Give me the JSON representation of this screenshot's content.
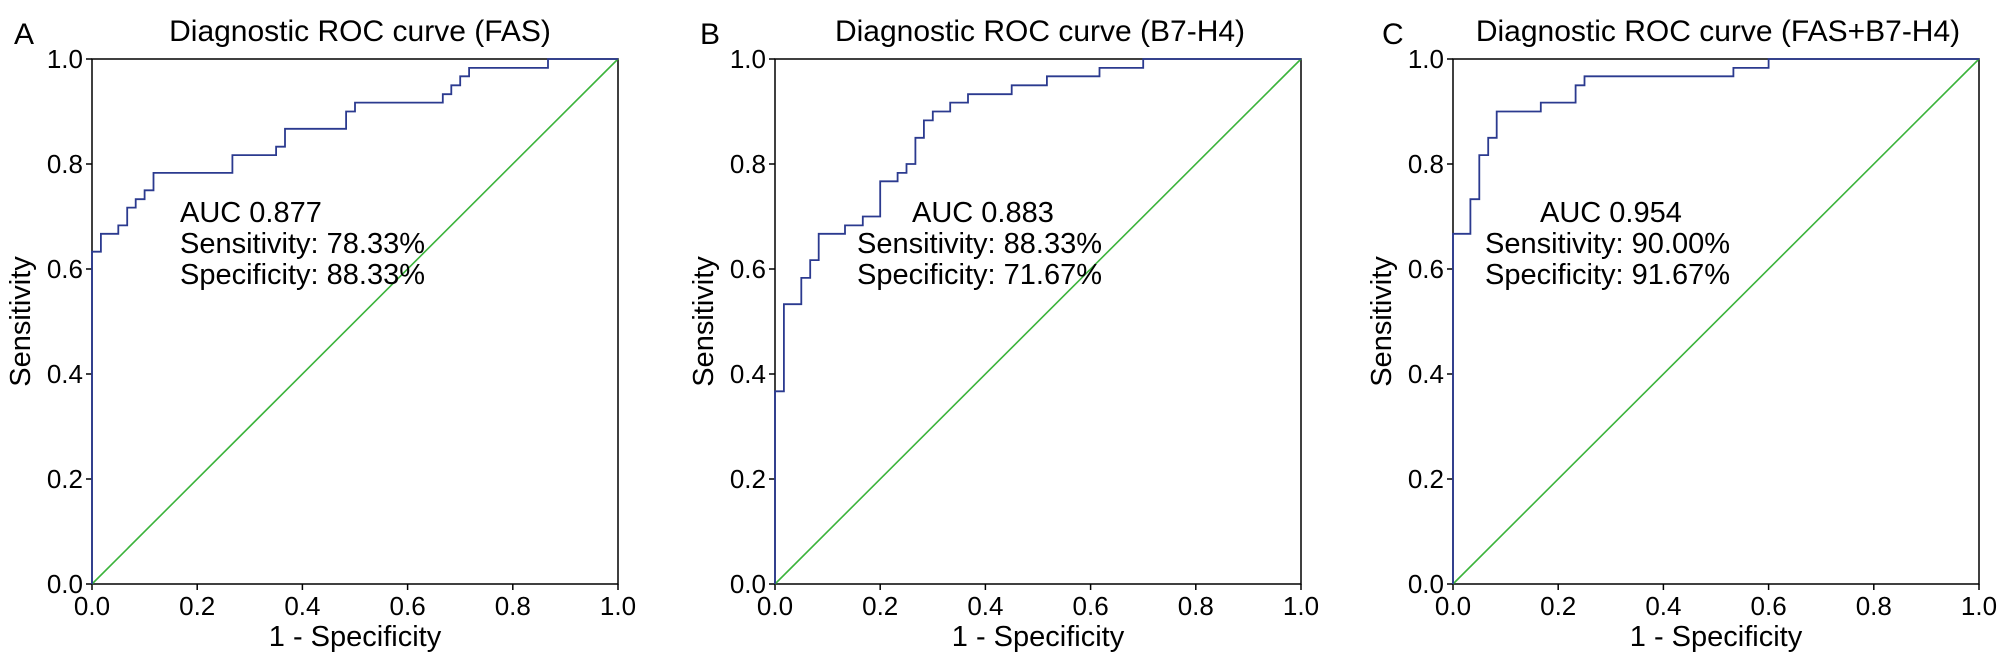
{
  "chart_data": [
    {
      "panel": "A",
      "type": "line",
      "title": "Diagnostic ROC curve (FAS)",
      "xlabel": "1 - Specificity",
      "ylabel": "Sensitivity",
      "xlim": [
        0,
        1
      ],
      "ylim": [
        0,
        1
      ],
      "xticks": [
        "0.0",
        "0.2",
        "0.4",
        "0.6",
        "0.8",
        "1.0"
      ],
      "yticks": [
        "0.0",
        "0.2",
        "0.4",
        "0.6",
        "0.8",
        "1.0"
      ],
      "annotations": [
        "AUC 0.877",
        "Sensitivity: 78.33%",
        "Specificity: 88.33%"
      ],
      "series": [
        {
          "name": "ROC curve",
          "color": "#2b3a8f",
          "x": [
            0,
            0,
            0.017,
            0.017,
            0.05,
            0.05,
            0.067,
            0.067,
            0.083,
            0.083,
            0.1,
            0.1,
            0.117,
            0.117,
            0.267,
            0.267,
            0.35,
            0.35,
            0.367,
            0.367,
            0.483,
            0.483,
            0.5,
            0.5,
            0.667,
            0.667,
            0.683,
            0.683,
            0.7,
            0.7,
            0.717,
            0.717,
            0.733,
            0.733,
            0.75,
            0.75,
            0.867,
            0.867,
            1.0
          ],
          "y": [
            0,
            0.633,
            0.633,
            0.667,
            0.667,
            0.683,
            0.683,
            0.717,
            0.717,
            0.733,
            0.733,
            0.75,
            0.75,
            0.783,
            0.783,
            0.817,
            0.817,
            0.833,
            0.833,
            0.867,
            0.867,
            0.9,
            0.9,
            0.917,
            0.917,
            0.933,
            0.933,
            0.95,
            0.95,
            0.967,
            0.967,
            0.983,
            0.983,
            0.983,
            0.983,
            0.983,
            0.983,
            1.0,
            1.0
          ]
        },
        {
          "name": "Reference line",
          "color": "#3bb33b",
          "x": [
            0,
            1
          ],
          "y": [
            0,
            1
          ]
        }
      ]
    },
    {
      "panel": "B",
      "type": "line",
      "title": "Diagnostic ROC curve (B7-H4)",
      "xlabel": "1 - Specificity",
      "ylabel": "Sensitivity",
      "xlim": [
        0,
        1
      ],
      "ylim": [
        0,
        1
      ],
      "xticks": [
        "0.0",
        "0.2",
        "0.4",
        "0.6",
        "0.8",
        "1.0"
      ],
      "yticks": [
        "0.0",
        "0.2",
        "0.4",
        "0.6",
        "0.8",
        "1.0"
      ],
      "annotations": [
        "AUC 0.883",
        "Sensitivity: 88.33%",
        "Specificity: 71.67%"
      ],
      "series": [
        {
          "name": "ROC curve",
          "color": "#2b3a8f",
          "x": [
            0,
            0,
            0.017,
            0.017,
            0.033,
            0.033,
            0.05,
            0.05,
            0.067,
            0.067,
            0.083,
            0.083,
            0.133,
            0.133,
            0.167,
            0.167,
            0.2,
            0.2,
            0.233,
            0.233,
            0.25,
            0.25,
            0.267,
            0.267,
            0.283,
            0.283,
            0.3,
            0.3,
            0.333,
            0.333,
            0.367,
            0.367,
            0.4,
            0.4,
            0.45,
            0.45,
            0.517,
            0.517,
            0.55,
            0.55,
            0.617,
            0.617,
            0.7,
            0.7,
            1.0
          ],
          "y": [
            0,
            0.367,
            0.367,
            0.533,
            0.533,
            0.533,
            0.533,
            0.583,
            0.583,
            0.617,
            0.617,
            0.667,
            0.667,
            0.683,
            0.683,
            0.7,
            0.7,
            0.767,
            0.767,
            0.783,
            0.783,
            0.8,
            0.8,
            0.85,
            0.85,
            0.883,
            0.883,
            0.9,
            0.9,
            0.917,
            0.917,
            0.933,
            0.933,
            0.933,
            0.933,
            0.95,
            0.95,
            0.967,
            0.967,
            0.967,
            0.967,
            0.983,
            0.983,
            1.0,
            1.0
          ]
        },
        {
          "name": "Reference line",
          "color": "#3bb33b",
          "x": [
            0,
            1
          ],
          "y": [
            0,
            1
          ]
        }
      ]
    },
    {
      "panel": "C",
      "type": "line",
      "title": "Diagnostic ROC curve (FAS+B7-H4)",
      "xlabel": "1 - Specificity",
      "ylabel": "Sensitivity",
      "xlim": [
        0,
        1
      ],
      "ylim": [
        0,
        1
      ],
      "xticks": [
        "0.0",
        "0.2",
        "0.4",
        "0.6",
        "0.8",
        "1.0"
      ],
      "yticks": [
        "0.0",
        "0.2",
        "0.4",
        "0.6",
        "0.8",
        "1.0"
      ],
      "annotations": [
        "AUC 0.954",
        "Sensitivity: 90.00%",
        "Specificity: 91.67%"
      ],
      "series": [
        {
          "name": "ROC curve",
          "color": "#2b3a8f",
          "x": [
            0,
            0,
            0.033,
            0.033,
            0.05,
            0.05,
            0.067,
            0.067,
            0.083,
            0.083,
            0.167,
            0.167,
            0.233,
            0.233,
            0.25,
            0.25,
            0.533,
            0.533,
            0.6,
            0.6,
            1.0
          ],
          "y": [
            0,
            0.667,
            0.667,
            0.733,
            0.733,
            0.817,
            0.817,
            0.85,
            0.85,
            0.9,
            0.9,
            0.917,
            0.917,
            0.95,
            0.95,
            0.967,
            0.967,
            0.983,
            0.983,
            1.0,
            1.0
          ]
        },
        {
          "name": "Reference line",
          "color": "#3bb33b",
          "x": [
            0,
            1
          ],
          "y": [
            0,
            1
          ]
        }
      ]
    }
  ]
}
